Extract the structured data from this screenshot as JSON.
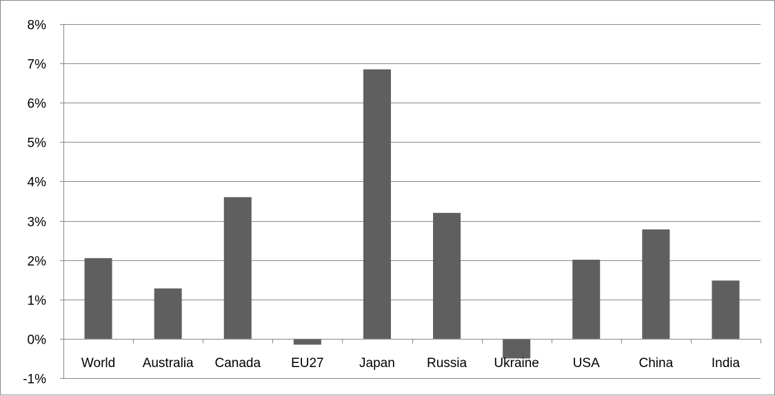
{
  "chart_data": {
    "type": "bar",
    "title": "",
    "xlabel": "",
    "ylabel": "",
    "categories": [
      "World",
      "Australia",
      "Canada",
      "EU27",
      "Japan",
      "Russia",
      "Ukraine",
      "USA",
      "China",
      "India"
    ],
    "values": [
      0.0205,
      0.0128,
      0.036,
      -0.0015,
      0.0685,
      0.032,
      -0.005,
      0.0201,
      0.0278,
      0.0148
    ],
    "ylim": [
      -0.01,
      0.08
    ],
    "yticks": [
      0.08,
      0.07,
      0.06,
      0.05,
      0.04,
      0.03,
      0.02,
      0.01,
      0.0,
      -0.01
    ],
    "ytick_labels": [
      "8%",
      "7%",
      "6%",
      "5%",
      "4%",
      "3%",
      "2%",
      "1%",
      "0%",
      "-1%"
    ],
    "grid": true,
    "legend": "none",
    "bar_color": "#5f5f5f",
    "grid_color": "#868686",
    "axis_color": "#868686"
  }
}
